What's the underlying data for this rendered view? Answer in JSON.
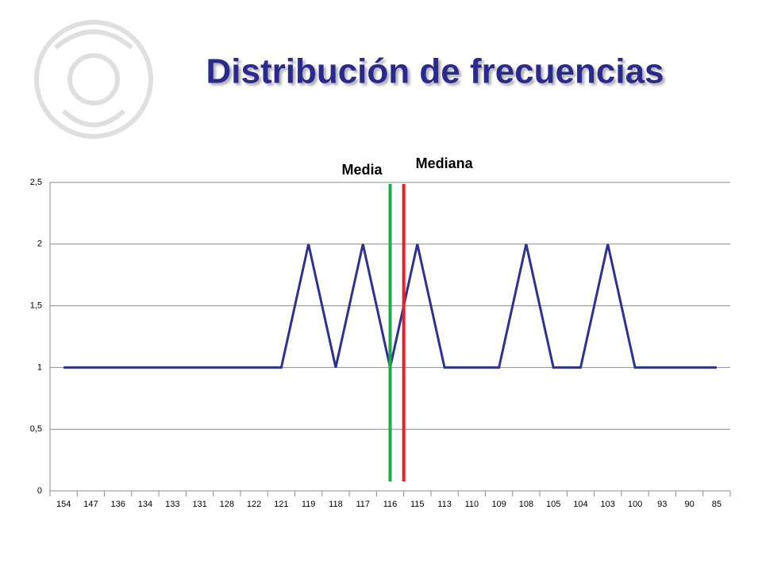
{
  "chart_data": {
    "type": "line",
    "title": "Distribución de frecuencias",
    "categories": [
      "154",
      "147",
      "136",
      "134",
      "133",
      "131",
      "128",
      "122",
      "121",
      "119",
      "118",
      "117",
      "116",
      "115",
      "113",
      "110",
      "109",
      "108",
      "105",
      "104",
      "103",
      "100",
      "93",
      "90",
      "85"
    ],
    "series": [
      {
        "color": "#2e3192",
        "values": [
          1,
          1,
          1,
          1,
          1,
          1,
          1,
          1,
          1,
          2,
          1,
          2,
          1,
          2,
          1,
          1,
          1,
          2,
          1,
          1,
          2,
          1,
          1,
          1,
          1
        ]
      }
    ],
    "ylim": [
      0,
      2.5
    ],
    "yticks": [
      0,
      {
        "value": 0.5,
        "label": "0,5"
      },
      1,
      {
        "value": 1.5,
        "label": "1,5"
      },
      2,
      {
        "value": 2.5,
        "label": "2,5"
      }
    ],
    "grid": true,
    "annotations": [
      {
        "label": "Media",
        "color": "#22a84a",
        "x_index": 12
      },
      {
        "label": "Mediana",
        "color": "#e8202a",
        "x_index": 12.5
      }
    ]
  }
}
